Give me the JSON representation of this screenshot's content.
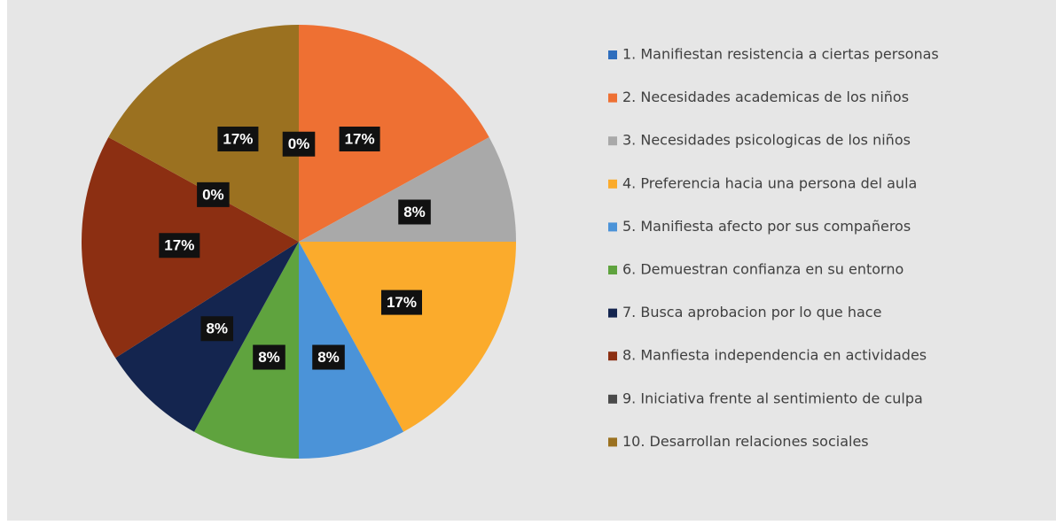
{
  "chart_data": {
    "type": "pie",
    "categories": [
      "1. Manifiestan resistencia a ciertas personas",
      "2. Necesidades academicas de los niños",
      "3. Necesidades psicologicas de los niños",
      "4. Preferencia hacia una persona del aula",
      "5. Manifiesta afecto por sus compañeros",
      "6. Demuestran confianza en su entorno",
      "7. Busca aprobacion por lo que hace",
      "8. Manfiesta independencia en actividades",
      "9. Iniciativa frente al sentimiento de culpa",
      "10. Desarrollan relaciones sociales"
    ],
    "values": [
      0,
      17,
      8,
      17,
      8,
      8,
      8,
      17,
      0,
      17
    ],
    "value_labels": [
      "0%",
      "17%",
      "8%",
      "17%",
      "8%",
      "8%",
      "8%",
      "17%",
      "0%",
      "17%"
    ],
    "colors": [
      "#2f6ebd",
      "#ee7033",
      "#a9a9a9",
      "#fbab2c",
      "#4b93d8",
      "#5fa33e",
      "#14254f",
      "#8c2f12",
      "#4a4a4a",
      "#9b7120"
    ],
    "legend": "right"
  }
}
